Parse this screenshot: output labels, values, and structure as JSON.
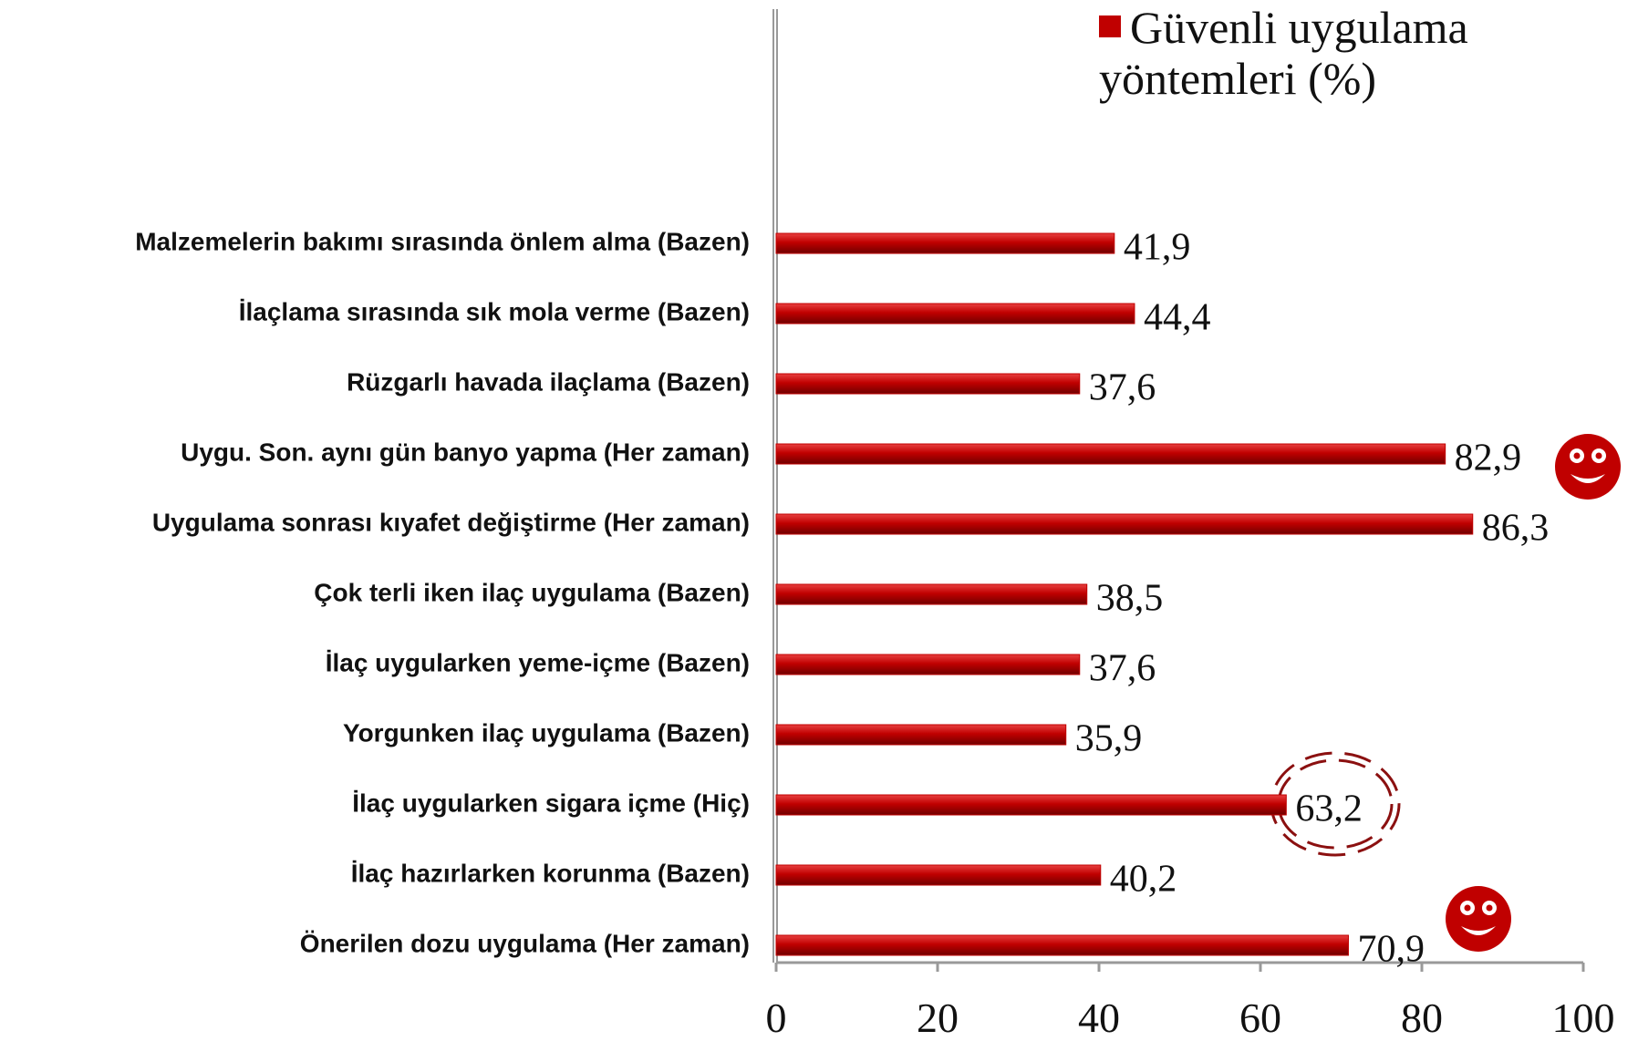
{
  "chart_data": {
    "type": "bar",
    "orientation": "horizontal",
    "categories": [
      "Malzemelerin bakımı sırasında önlem alma (Bazen)",
      "İlaçlama sırasında sık mola verme (Bazen)",
      "Rüzgarlı havada ilaçlama (Bazen)",
      "Uygu. Son. aynı gün banyo yapma (Her zaman)",
      "Uygulama sonrası kıyafet değiştirme (Her zaman)",
      "Çok terli iken ilaç uygulama (Bazen)",
      "İlaç uygularken yeme-içme (Bazen)",
      "Yorgunken ilaç uygulama (Bazen)",
      "İlaç uygularken sigara içme (Hiç)",
      "İlaç hazırlarken korunma (Bazen)",
      "Önerilen dozu uygulama (Her zaman)"
    ],
    "series": [
      {
        "name": "Güvenli uygulama yöntemleri (%)",
        "color": "#c00000",
        "values": [
          41.9,
          44.4,
          37.6,
          82.9,
          86.3,
          38.5,
          37.6,
          35.9,
          63.2,
          40.2,
          70.9
        ],
        "value_labels": [
          "41,9",
          "44,4",
          "37,6",
          "82,9",
          "86,3",
          "38,5",
          "37,6",
          "35,9",
          "63,2",
          "40,2",
          "70,9"
        ]
      }
    ],
    "xlim": [
      0,
      100
    ],
    "xticks": [
      0,
      20,
      40,
      60,
      80,
      100
    ],
    "legend": "top-right"
  }
}
